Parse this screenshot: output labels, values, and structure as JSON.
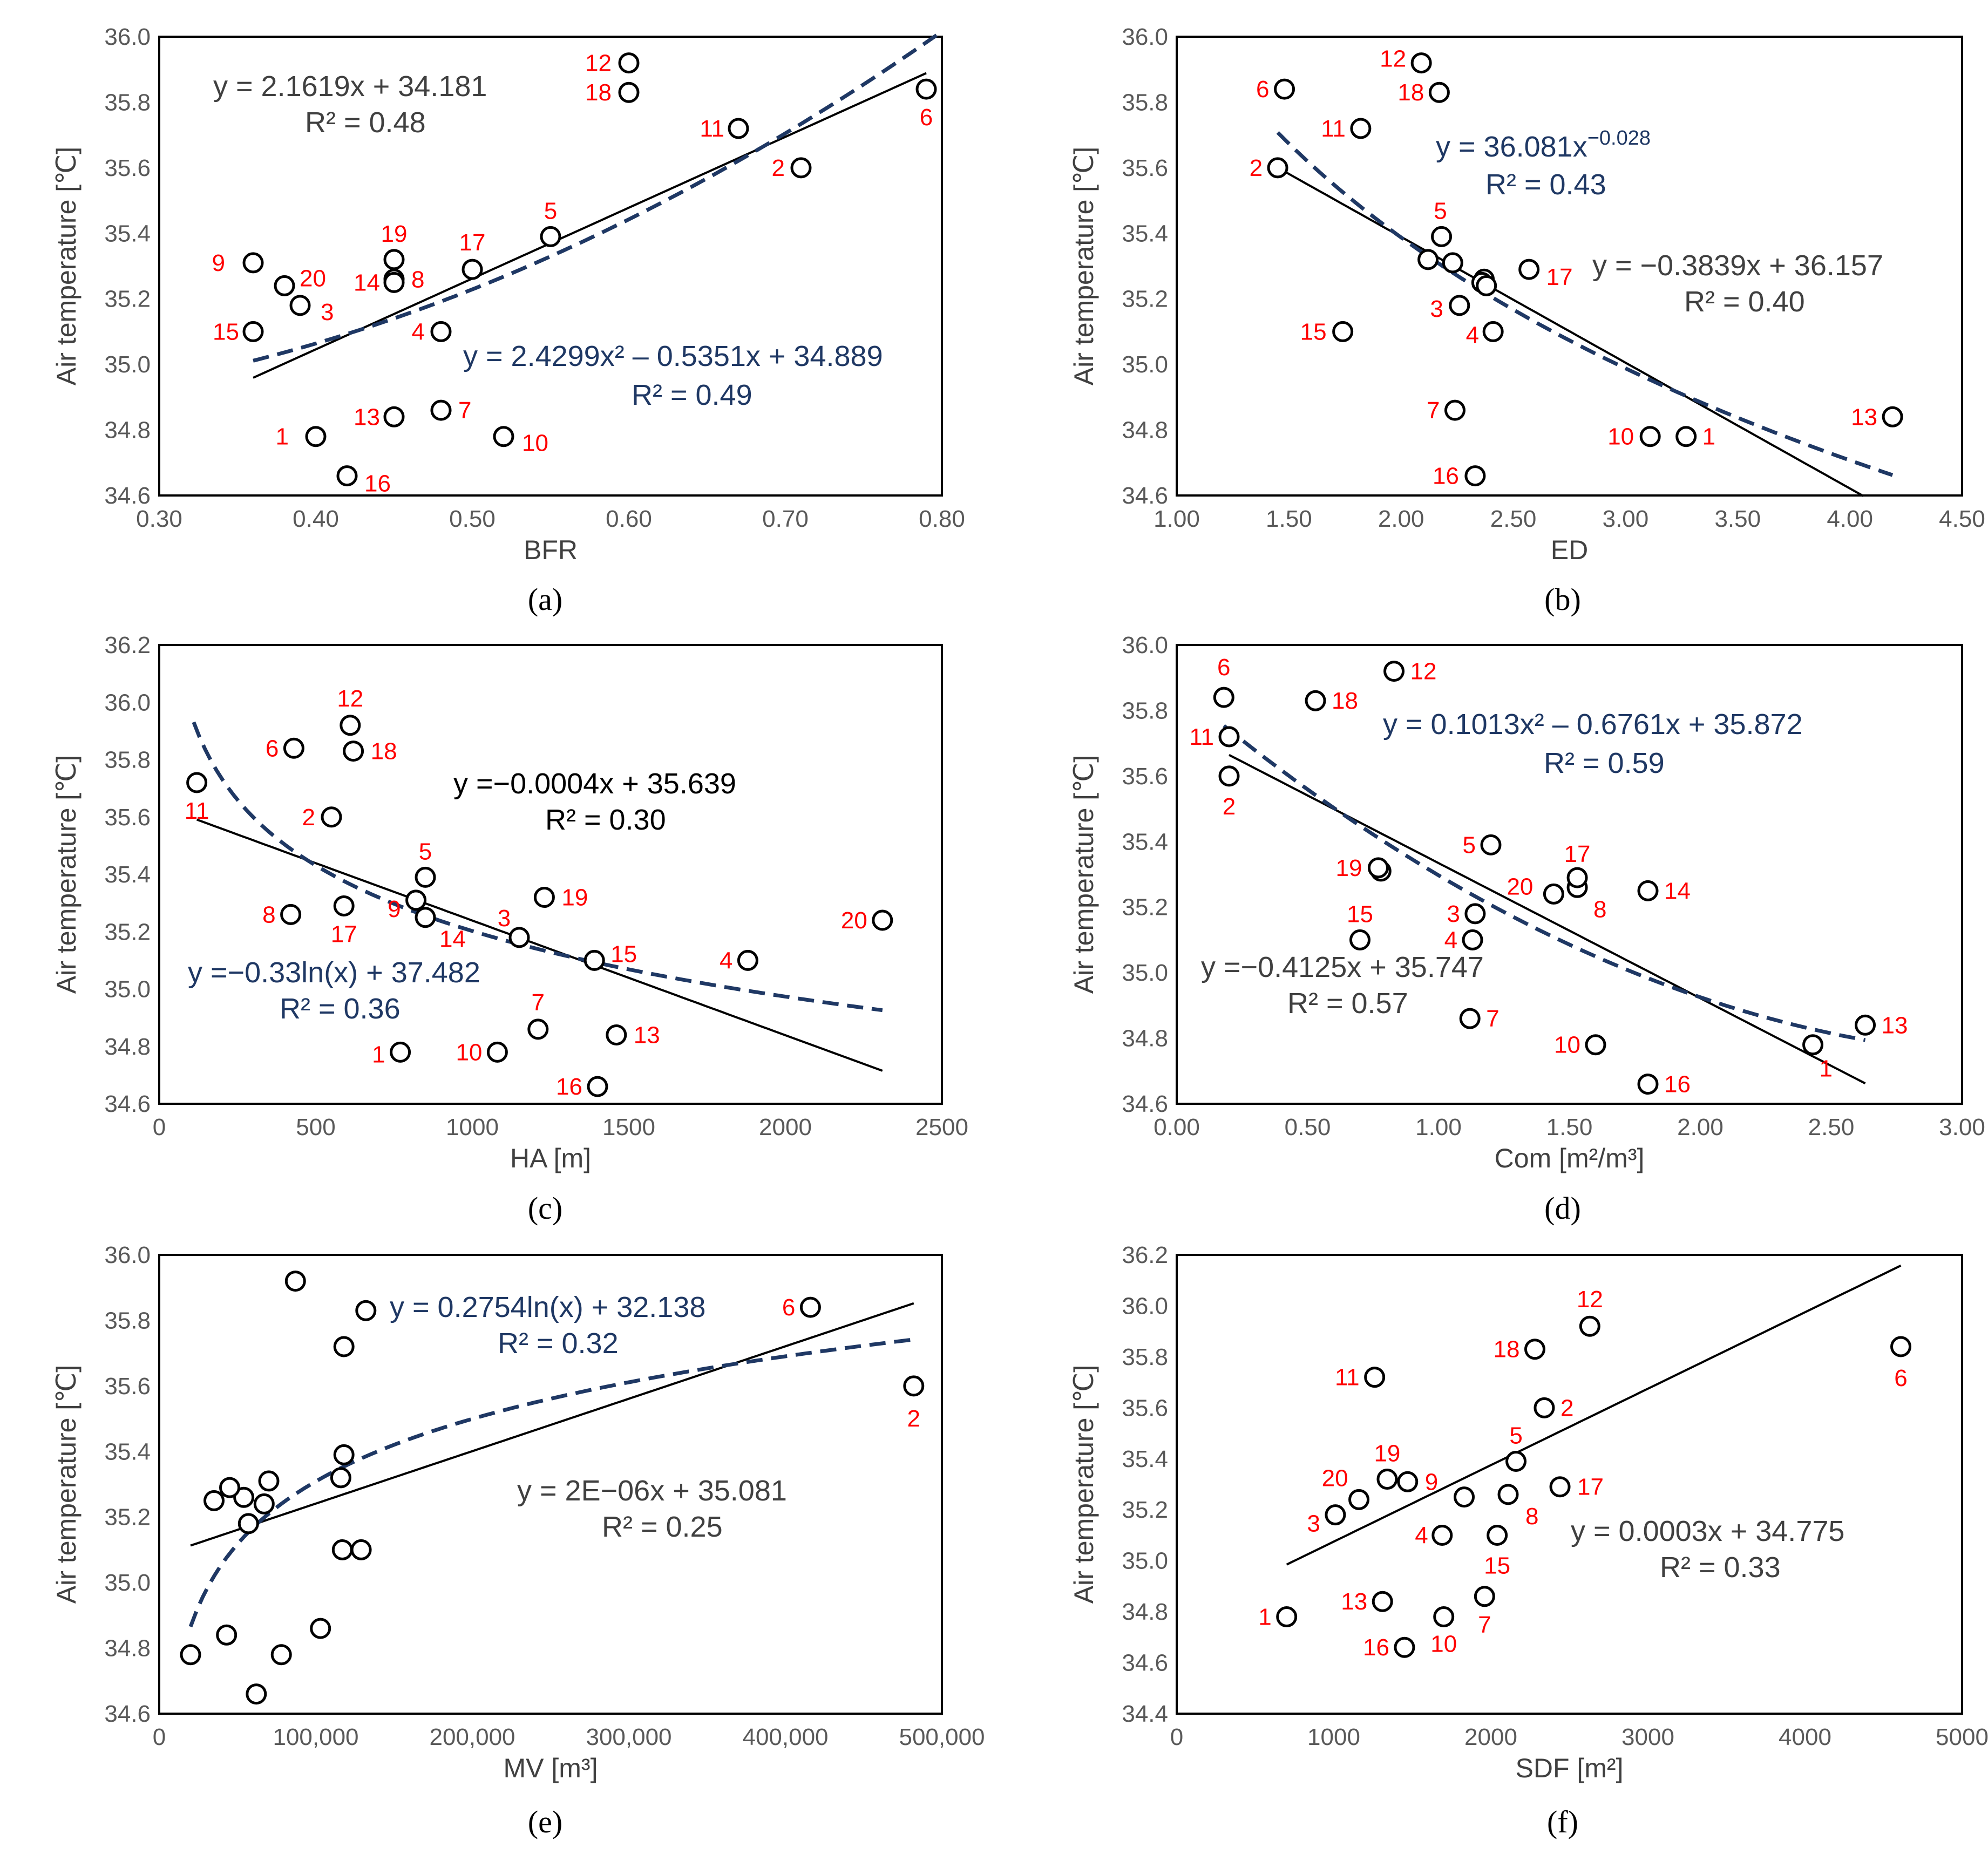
{
  "colors": {
    "points": "#000000",
    "labels": "#ff0000",
    "linear": "#000000",
    "nonlinear": "#1f3864",
    "eq_dark": "#404040",
    "eq_black": "#000000"
  },
  "chart_data": [
    {
      "panel": "(a)",
      "type": "scatter",
      "xlabel": "BFR",
      "ylabel": "Air temperature [℃]",
      "xlim": [
        0.3,
        0.8
      ],
      "ylim": [
        34.6,
        36.0
      ],
      "xticks": [
        "0.30",
        "0.40",
        "0.50",
        "0.60",
        "0.70",
        "0.80"
      ],
      "yticks": [
        "34.6",
        "34.8",
        "35.0",
        "35.2",
        "35.4",
        "35.6",
        "35.8",
        "36.0"
      ],
      "points": [
        {
          "id": "1",
          "x": 0.4,
          "y": 34.78
        },
        {
          "id": "2",
          "x": 0.71,
          "y": 35.6
        },
        {
          "id": "3",
          "x": 0.39,
          "y": 35.18
        },
        {
          "id": "4",
          "x": 0.48,
          "y": 35.1
        },
        {
          "id": "5",
          "x": 0.55,
          "y": 35.39
        },
        {
          "id": "6",
          "x": 0.79,
          "y": 35.84
        },
        {
          "id": "7",
          "x": 0.48,
          "y": 34.86
        },
        {
          "id": "8",
          "x": 0.45,
          "y": 35.26
        },
        {
          "id": "9",
          "x": 0.36,
          "y": 35.31
        },
        {
          "id": "10",
          "x": 0.52,
          "y": 34.78
        },
        {
          "id": "11",
          "x": 0.67,
          "y": 35.72
        },
        {
          "id": "12",
          "x": 0.6,
          "y": 35.92
        },
        {
          "id": "13",
          "x": 0.45,
          "y": 34.84
        },
        {
          "id": "14",
          "x": 0.45,
          "y": 35.25
        },
        {
          "id": "15",
          "x": 0.36,
          "y": 35.1
        },
        {
          "id": "16",
          "x": 0.42,
          "y": 34.66
        },
        {
          "id": "17",
          "x": 0.5,
          "y": 35.29
        },
        {
          "id": "18",
          "x": 0.6,
          "y": 35.83
        },
        {
          "id": "19",
          "x": 0.45,
          "y": 35.32
        },
        {
          "id": "20",
          "x": 0.38,
          "y": 35.24
        }
      ],
      "fits": [
        {
          "style": "linear",
          "model": "linear",
          "a": 2.1619,
          "b": 34.181,
          "x_range": [
            0.36,
            0.79
          ],
          "eq": "y = 2.1619x + 34.181",
          "r2": "R² = 0.48"
        },
        {
          "style": "nonlinear",
          "model": "poly2",
          "a": 2.4299,
          "b": -0.5351,
          "c": 34.889,
          "x_range": [
            0.36,
            0.8
          ],
          "eq": "y = 2.4299x² – 0.5351x + 34.889",
          "r2": "R² = 0.49"
        }
      ]
    },
    {
      "panel": "(b)",
      "type": "scatter",
      "xlabel": "ED",
      "ylabel": "Air temperature [℃]",
      "xlim": [
        1.0,
        4.5
      ],
      "ylim": [
        34.6,
        36.0
      ],
      "xticks": [
        "1.00",
        "1.50",
        "2.00",
        "2.50",
        "3.00",
        "3.50",
        "4.00",
        "4.50"
      ],
      "yticks": [
        "34.6",
        "34.8",
        "35.0",
        "35.2",
        "35.4",
        "35.6",
        "35.8",
        "36.0"
      ],
      "points": [
        {
          "id": "1",
          "x": 3.27,
          "y": 34.78
        },
        {
          "id": "2",
          "x": 1.45,
          "y": 35.6
        },
        {
          "id": "3",
          "x": 2.26,
          "y": 35.18
        },
        {
          "id": "4",
          "x": 2.41,
          "y": 35.1
        },
        {
          "id": "5",
          "x": 2.18,
          "y": 35.39
        },
        {
          "id": "6",
          "x": 1.48,
          "y": 35.84
        },
        {
          "id": "7",
          "x": 2.24,
          "y": 34.86
        },
        {
          "id": "8",
          "x": 2.37,
          "y": 35.26
        },
        {
          "id": "9",
          "x": 2.36,
          "y": 35.25
        },
        {
          "id": "10",
          "x": 3.11,
          "y": 34.78
        },
        {
          "id": "11",
          "x": 1.82,
          "y": 35.72
        },
        {
          "id": "12",
          "x": 2.09,
          "y": 35.92
        },
        {
          "id": "13",
          "x": 4.19,
          "y": 34.84
        },
        {
          "id": "14",
          "x": 2.38,
          "y": 35.24
        },
        {
          "id": "15",
          "x": 1.74,
          "y": 35.1
        },
        {
          "id": "16",
          "x": 2.33,
          "y": 34.66
        },
        {
          "id": "17",
          "x": 2.57,
          "y": 35.29
        },
        {
          "id": "18",
          "x": 2.17,
          "y": 35.83
        },
        {
          "id": "19",
          "x": 2.12,
          "y": 35.32
        },
        {
          "id": "20",
          "x": 2.23,
          "y": 35.31
        }
      ],
      "fits": [
        {
          "style": "linear",
          "model": "linear",
          "a": -0.3839,
          "b": 36.157,
          "x_range": [
            1.45,
            4.06
          ],
          "eq": "y = −0.3839x + 36.157",
          "r2": "R² = 0.40"
        },
        {
          "style": "nonlinear",
          "model": "power",
          "a": 36.081,
          "b": -0.028,
          "x_range": [
            1.45,
            4.19
          ],
          "eq": "y = 36.081x",
          "eq_sup": "−0.028",
          "r2": "R² = 0.43"
        }
      ]
    },
    {
      "panel": "(c)",
      "type": "scatter",
      "xlabel": "HA [m]",
      "ylabel": "Air temperature [℃]",
      "xlim": [
        0,
        2500
      ],
      "ylim": [
        34.6,
        36.2
      ],
      "xticks": [
        "0",
        "500",
        "1000",
        "1500",
        "2000",
        "2500"
      ],
      "yticks": [
        "34.6",
        "34.8",
        "35.0",
        "35.2",
        "35.4",
        "35.6",
        "35.8",
        "36.0",
        "36.2"
      ],
      "points": [
        {
          "id": "1",
          "x": 770,
          "y": 34.78
        },
        {
          "id": "2",
          "x": 550,
          "y": 35.6
        },
        {
          "id": "3",
          "x": 1150,
          "y": 35.18
        },
        {
          "id": "4",
          "x": 1880,
          "y": 35.1
        },
        {
          "id": "5",
          "x": 850,
          "y": 35.39
        },
        {
          "id": "6",
          "x": 430,
          "y": 35.84
        },
        {
          "id": "7",
          "x": 1210,
          "y": 34.86
        },
        {
          "id": "8",
          "x": 420,
          "y": 35.26
        },
        {
          "id": "9",
          "x": 820,
          "y": 35.31
        },
        {
          "id": "10",
          "x": 1080,
          "y": 34.78
        },
        {
          "id": "11",
          "x": 120,
          "y": 35.72
        },
        {
          "id": "12",
          "x": 610,
          "y": 35.92
        },
        {
          "id": "13",
          "x": 1460,
          "y": 34.84
        },
        {
          "id": "14",
          "x": 850,
          "y": 35.25
        },
        {
          "id": "15",
          "x": 1390,
          "y": 35.1
        },
        {
          "id": "16",
          "x": 1400,
          "y": 34.66
        },
        {
          "id": "17",
          "x": 590,
          "y": 35.29
        },
        {
          "id": "18",
          "x": 620,
          "y": 35.83
        },
        {
          "id": "19",
          "x": 1230,
          "y": 35.32
        },
        {
          "id": "20",
          "x": 2310,
          "y": 35.24
        }
      ],
      "fits": [
        {
          "style": "linear",
          "model": "linear",
          "a": -0.0004,
          "b": 35.639,
          "x_range": [
            120,
            2310
          ],
          "eq": "y =−0.0004x + 35.639",
          "r2": "R² = 0.30"
        },
        {
          "style": "nonlinear",
          "model": "log",
          "a": -0.33,
          "b": 37.482,
          "x_range": [
            110,
            2310
          ],
          "eq": "y =−0.33ln(x) + 37.482",
          "r2": "R² = 0.36"
        }
      ]
    },
    {
      "panel": "(d)",
      "type": "scatter",
      "xlabel": "Com [m²/m³]",
      "ylabel": "Air temperature [℃]",
      "xlim": [
        0.0,
        3.0
      ],
      "ylim": [
        34.6,
        36.0
      ],
      "xticks": [
        "0.00",
        "0.50",
        "1.00",
        "1.50",
        "2.00",
        "2.50",
        "3.00"
      ],
      "yticks": [
        "34.6",
        "34.8",
        "35.0",
        "35.2",
        "35.4",
        "35.6",
        "35.8",
        "36.0"
      ],
      "points": [
        {
          "id": "1",
          "x": 2.43,
          "y": 34.78
        },
        {
          "id": "2",
          "x": 0.2,
          "y": 35.6
        },
        {
          "id": "3",
          "x": 1.14,
          "y": 35.18
        },
        {
          "id": "4",
          "x": 1.13,
          "y": 35.1
        },
        {
          "id": "5",
          "x": 1.2,
          "y": 35.39
        },
        {
          "id": "6",
          "x": 0.18,
          "y": 35.84
        },
        {
          "id": "7",
          "x": 1.12,
          "y": 34.86
        },
        {
          "id": "8",
          "x": 1.53,
          "y": 35.26
        },
        {
          "id": "9",
          "x": 0.78,
          "y": 35.31
        },
        {
          "id": "10",
          "x": 1.6,
          "y": 34.78
        },
        {
          "id": "11",
          "x": 0.2,
          "y": 35.72
        },
        {
          "id": "12",
          "x": 0.83,
          "y": 35.92
        },
        {
          "id": "13",
          "x": 2.63,
          "y": 34.84
        },
        {
          "id": "14",
          "x": 1.8,
          "y": 35.25
        },
        {
          "id": "15",
          "x": 0.7,
          "y": 35.1
        },
        {
          "id": "16",
          "x": 1.8,
          "y": 34.66
        },
        {
          "id": "17",
          "x": 1.53,
          "y": 35.29
        },
        {
          "id": "18",
          "x": 0.53,
          "y": 35.83
        },
        {
          "id": "19",
          "x": 0.77,
          "y": 35.32
        },
        {
          "id": "20",
          "x": 1.44,
          "y": 35.24
        }
      ],
      "fits": [
        {
          "style": "linear",
          "model": "linear",
          "a": -0.4125,
          "b": 35.747,
          "x_range": [
            0.2,
            2.63
          ],
          "eq": "y =−0.4125x + 35.747",
          "r2": "R² = 0.57"
        },
        {
          "style": "nonlinear",
          "model": "poly2",
          "a": 0.1013,
          "b": -0.6761,
          "c": 35.872,
          "x_range": [
            0.18,
            2.63
          ],
          "eq": "y = 0.1013x² – 0.6761x + 35.872",
          "r2": "R² = 0.59"
        }
      ]
    },
    {
      "panel": "(e)",
      "type": "scatter",
      "xlabel": "MV [m³]",
      "ylabel": "Air temperature [℃]",
      "xlim": [
        0,
        500000
      ],
      "ylim": [
        34.6,
        36.0
      ],
      "xticks": [
        "0",
        "100,000",
        "200,000",
        "300,000",
        "400,000",
        "500,000"
      ],
      "yticks": [
        "34.6",
        "34.8",
        "35.0",
        "35.2",
        "35.4",
        "35.6",
        "35.8",
        "36.0"
      ],
      "points": [
        {
          "id": "1",
          "x": 20000,
          "y": 34.78
        },
        {
          "id": "2",
          "x": 482000,
          "y": 35.6
        },
        {
          "id": "3",
          "x": 57000,
          "y": 35.18
        },
        {
          "id": "4",
          "x": 117000,
          "y": 35.1
        },
        {
          "id": "5",
          "x": 118000,
          "y": 35.39
        },
        {
          "id": "6",
          "x": 416000,
          "y": 35.84
        },
        {
          "id": "7",
          "x": 103000,
          "y": 34.86
        },
        {
          "id": "8",
          "x": 54000,
          "y": 35.26
        },
        {
          "id": "9",
          "x": 70000,
          "y": 35.31
        },
        {
          "id": "10",
          "x": 78000,
          "y": 34.78
        },
        {
          "id": "11",
          "x": 118000,
          "y": 35.72
        },
        {
          "id": "12",
          "x": 87000,
          "y": 35.92
        },
        {
          "id": "13",
          "x": 43000,
          "y": 34.84
        },
        {
          "id": "14",
          "x": 35000,
          "y": 35.25
        },
        {
          "id": "15",
          "x": 129000,
          "y": 35.1
        },
        {
          "id": "16",
          "x": 62000,
          "y": 34.66
        },
        {
          "id": "17",
          "x": 67000,
          "y": 35.24
        },
        {
          "id": "18",
          "x": 132000,
          "y": 35.83
        },
        {
          "id": "19",
          "x": 116000,
          "y": 35.32
        },
        {
          "id": "20",
          "x": 45000,
          "y": 35.29
        }
      ],
      "fits": [
        {
          "style": "linear",
          "model": "linear",
          "a": 1.6e-06,
          "b": 35.081,
          "x_range": [
            20000,
            482000
          ],
          "eq": "y = 2E−06x + 35.081",
          "r2": "R² = 0.25"
        },
        {
          "style": "nonlinear",
          "model": "log",
          "a": 0.2754,
          "b": 32.138,
          "x_range": [
            20000,
            482000
          ],
          "eq": "y = 0.2754ln(x) + 32.138",
          "r2": "R² = 0.32"
        }
      ]
    },
    {
      "panel": "(f)",
      "type": "scatter",
      "xlabel": "SDF [m²]",
      "ylabel": "Air temperature [℃]",
      "xlim": [
        0,
        5000
      ],
      "ylim": [
        34.4,
        36.2
      ],
      "xticks": [
        "0",
        "1000",
        "2000",
        "3000",
        "4000",
        "5000"
      ],
      "yticks": [
        "34.4",
        "34.6",
        "34.8",
        "35.0",
        "35.2",
        "35.4",
        "35.6",
        "35.8",
        "36.0",
        "36.2"
      ],
      "points": [
        {
          "id": "1",
          "x": 700,
          "y": 34.78
        },
        {
          "id": "2",
          "x": 2340,
          "y": 35.6
        },
        {
          "id": "3",
          "x": 1010,
          "y": 35.18
        },
        {
          "id": "4",
          "x": 1690,
          "y": 35.1
        },
        {
          "id": "5",
          "x": 2160,
          "y": 35.39
        },
        {
          "id": "6",
          "x": 4610,
          "y": 35.84
        },
        {
          "id": "7",
          "x": 1960,
          "y": 34.86
        },
        {
          "id": "8",
          "x": 2110,
          "y": 35.26
        },
        {
          "id": "9",
          "x": 1470,
          "y": 35.31
        },
        {
          "id": "10",
          "x": 1700,
          "y": 34.78
        },
        {
          "id": "11",
          "x": 1260,
          "y": 35.72
        },
        {
          "id": "12",
          "x": 2630,
          "y": 35.92
        },
        {
          "id": "13",
          "x": 1310,
          "y": 34.84
        },
        {
          "id": "14",
          "x": 1830,
          "y": 35.25
        },
        {
          "id": "15",
          "x": 2040,
          "y": 35.1
        },
        {
          "id": "16",
          "x": 1450,
          "y": 34.66
        },
        {
          "id": "17",
          "x": 2440,
          "y": 35.29
        },
        {
          "id": "18",
          "x": 2280,
          "y": 35.83
        },
        {
          "id": "19",
          "x": 1340,
          "y": 35.32
        },
        {
          "id": "20",
          "x": 1160,
          "y": 35.24
        }
      ],
      "fits": [
        {
          "style": "linear",
          "model": "linear",
          "a": 0.0003,
          "b": 34.775,
          "x_range": [
            700,
            4610
          ],
          "eq": "y = 0.0003x + 34.775",
          "r2": "R² = 0.33"
        }
      ]
    }
  ]
}
